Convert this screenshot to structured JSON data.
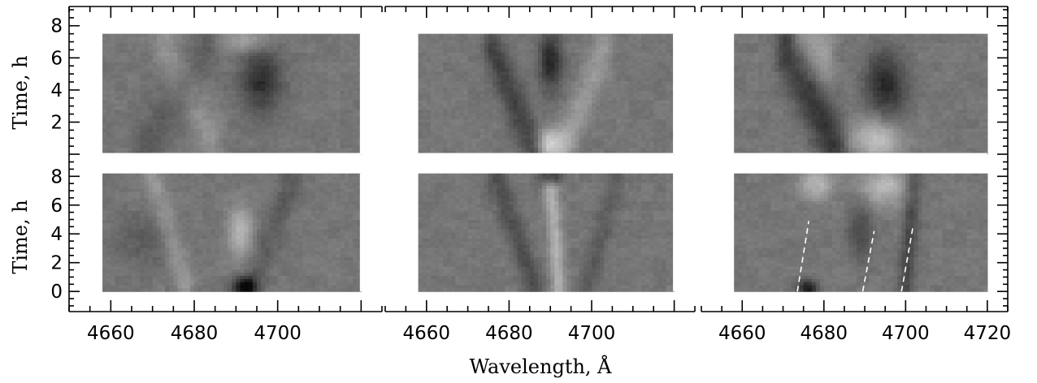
{
  "chart_data": {
    "type": "heatmap",
    "title": "",
    "xlabel": "Wavelength, Å",
    "ylabel": "Time, h",
    "colormap": "grayscale",
    "gap_color": "#ffffff",
    "panel_layout": {
      "rows": 2,
      "cols": 3
    },
    "x_ticks_labeled": {
      "col0": [
        4660,
        4680,
        4700
      ],
      "col1": [
        4660,
        4680,
        4700
      ],
      "col2": [
        4660,
        4680,
        4700,
        4720
      ]
    },
    "x_tick_labels": {
      "col0": [
        "4660",
        "4680",
        "4700"
      ],
      "col1": [
        "4660",
        "4680",
        "4700"
      ],
      "col2": [
        "4660",
        "4680",
        "4700",
        "4720"
      ]
    },
    "y_ticks_labeled": {
      "row0": [
        2,
        4,
        6,
        8
      ],
      "row1": [
        0,
        2,
        4,
        6,
        8
      ]
    },
    "y_tick_labels": {
      "row0": [
        "2",
        "4",
        "6",
        "8"
      ],
      "row1": [
        "0",
        "2",
        "4",
        "6",
        "8"
      ]
    },
    "panels": [
      {
        "row": 0,
        "col": 0,
        "xlim": [
          4650,
          4725
        ],
        "ylim": [
          -0.3,
          9.2
        ],
        "data_xrange": [
          4658,
          4720
        ],
        "data_yrange": [
          0,
          7.5
        ],
        "features": [
          {
            "kind": "dark_blob",
            "x": 4696,
            "y": 4.6,
            "rx": 5,
            "ry": 2.0,
            "strength": -0.55
          },
          {
            "kind": "bright_blob",
            "x": 4692,
            "y": 7.1,
            "rx": 6,
            "ry": 0.8,
            "strength": 0.35
          },
          {
            "kind": "dark_band",
            "x0": 4668,
            "y0": 0.2,
            "x1": 4683,
            "y1": 6.5,
            "width": 2.5,
            "strength": -0.2
          },
          {
            "kind": "bright_band",
            "x0": 4684,
            "y0": 1.0,
            "x1": 4673,
            "y1": 6.8,
            "width": 2.5,
            "strength": 0.2
          }
        ]
      },
      {
        "row": 0,
        "col": 1,
        "xlim": [
          4650,
          4725
        ],
        "ylim": [
          -0.3,
          9.2
        ],
        "data_xrange": [
          4658,
          4720
        ],
        "data_yrange": [
          0,
          7.5
        ],
        "features": [
          {
            "kind": "dark_blob",
            "x": 4690,
            "y": 5.8,
            "rx": 3,
            "ry": 1.8,
            "strength": -0.6
          },
          {
            "kind": "bright_blob",
            "x": 4690,
            "y": 0.6,
            "rx": 3.5,
            "ry": 1.0,
            "strength": 0.7
          },
          {
            "kind": "dark_band",
            "x0": 4686,
            "y0": 0.4,
            "x1": 4676,
            "y1": 6.5,
            "width": 2.0,
            "strength": -0.4
          },
          {
            "kind": "bright_band",
            "x0": 4694,
            "y0": 0.8,
            "x1": 4703,
            "y1": 6.5,
            "width": 2.0,
            "strength": 0.25
          }
        ]
      },
      {
        "row": 0,
        "col": 2,
        "xlim": [
          4650,
          4725
        ],
        "ylim": [
          -0.3,
          9.2
        ],
        "data_xrange": [
          4658,
          4720
        ],
        "data_yrange": [
          0,
          7.5
        ],
        "features": [
          {
            "kind": "dark_blob",
            "x": 4695,
            "y": 4.2,
            "rx": 5,
            "ry": 2.2,
            "strength": -0.6
          },
          {
            "kind": "bright_blob",
            "x": 4693,
            "y": 1.0,
            "rx": 6,
            "ry": 1.4,
            "strength": 0.6
          },
          {
            "kind": "dark_band",
            "x0": 4683,
            "y0": 0.3,
            "x1": 4671,
            "y1": 6.5,
            "width": 2.5,
            "strength": -0.5
          },
          {
            "kind": "bright_band",
            "x0": 4680,
            "y0": 6.0,
            "x1": 4674,
            "y1": 7.2,
            "width": 2.5,
            "strength": 0.3
          }
        ]
      },
      {
        "row": 1,
        "col": 0,
        "xlim": [
          4650,
          4725
        ],
        "ylim": [
          -1.4,
          9.2
        ],
        "data_xrange": [
          4658,
          4720
        ],
        "data_yrange": [
          0,
          8.2
        ],
        "features": [
          {
            "kind": "dark_blob",
            "x": 4692,
            "y": 0.3,
            "rx": 3,
            "ry": 0.7,
            "strength": -0.85
          },
          {
            "kind": "bright_blob",
            "x": 4691,
            "y": 4.2,
            "rx": 3,
            "ry": 1.8,
            "strength": 0.5
          },
          {
            "kind": "dark_blob",
            "x": 4668,
            "y": 3.6,
            "rx": 7,
            "ry": 2.0,
            "strength": -0.2
          },
          {
            "kind": "bright_band",
            "x0": 4678,
            "y0": 0.5,
            "x1": 4670,
            "y1": 8.0,
            "width": 2.0,
            "strength": 0.25
          },
          {
            "kind": "dark_band",
            "x0": 4694,
            "y0": 0.5,
            "x1": 4704,
            "y1": 8.0,
            "width": 2.0,
            "strength": -0.2
          }
        ]
      },
      {
        "row": 1,
        "col": 1,
        "xlim": [
          4650,
          4725
        ],
        "ylim": [
          -1.4,
          9.2
        ],
        "data_xrange": [
          4658,
          4720
        ],
        "data_yrange": [
          0,
          8.2
        ],
        "features": [
          {
            "kind": "dark_blob",
            "x": 4690,
            "y": 8.0,
            "rx": 2.5,
            "ry": 0.6,
            "strength": -0.8
          },
          {
            "kind": "bright_band",
            "x0": 4692,
            "y0": 0.5,
            "x1": 4690,
            "y1": 7.8,
            "width": 1.8,
            "strength": 0.45
          },
          {
            "kind": "dark_band",
            "x0": 4686,
            "y0": 0.4,
            "x1": 4677,
            "y1": 7.8,
            "width": 2.0,
            "strength": -0.3
          },
          {
            "kind": "dark_band",
            "x0": 4699,
            "y0": 0.4,
            "x1": 4706,
            "y1": 7.8,
            "width": 2.0,
            "strength": -0.2
          }
        ]
      },
      {
        "row": 1,
        "col": 2,
        "xlim": [
          4650,
          4725
        ],
        "ylim": [
          -1.4,
          9.2
        ],
        "data_xrange": [
          4658,
          4720
        ],
        "data_yrange": [
          0,
          8.2
        ],
        "features": [
          {
            "kind": "bright_blob",
            "x": 4678,
            "y": 7.5,
            "rx": 4,
            "ry": 1.2,
            "strength": 0.5
          },
          {
            "kind": "bright_blob",
            "x": 4695,
            "y": 7.3,
            "rx": 6,
            "ry": 1.4,
            "strength": 0.5
          },
          {
            "kind": "dark_blob",
            "x": 4689,
            "y": 4.2,
            "rx": 3,
            "ry": 2.0,
            "strength": -0.35
          },
          {
            "kind": "dark_blob",
            "x": 4676,
            "y": 0.2,
            "rx": 2.5,
            "ry": 0.6,
            "strength": -0.7
          },
          {
            "kind": "dark_band",
            "x0": 4700,
            "y0": 0.5,
            "x1": 4702,
            "y1": 7.8,
            "width": 2.0,
            "strength": -0.35
          }
        ],
        "guide_lines": [
          {
            "x0": 4673.5,
            "y0": 0.0,
            "x1": 4676.3,
            "y1": 4.9
          },
          {
            "x0": 4689.5,
            "y0": 0.0,
            "x1": 4692.3,
            "y1": 4.2
          },
          {
            "x0": 4699.0,
            "y0": 0.0,
            "x1": 4701.8,
            "y1": 4.5
          }
        ]
      }
    ]
  }
}
